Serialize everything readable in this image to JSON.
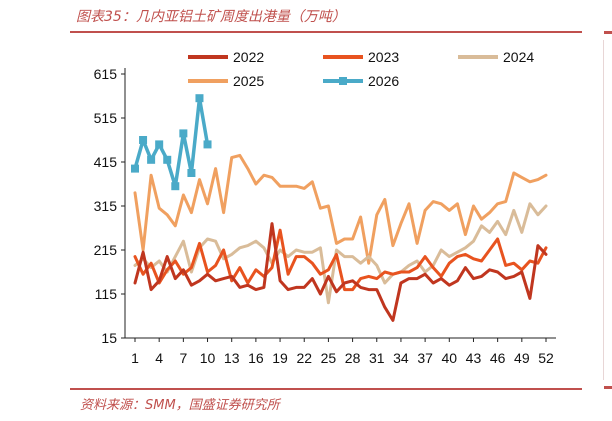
{
  "header": {
    "title": "图表35：几内亚铝土矿周度出港量（万吨）"
  },
  "footer": {
    "source": "资料来源：SMM，国盛证券研究所"
  },
  "chart_data": {
    "type": "line",
    "title": "图表35：几内亚铝土矿周度出港量（万吨）",
    "xlabel": "",
    "ylabel": "",
    "xlim": [
      1,
      52
    ],
    "ylim": [
      15,
      615
    ],
    "yticks": [
      15,
      115,
      215,
      315,
      415,
      515,
      615
    ],
    "xticks": [
      1,
      4,
      7,
      10,
      13,
      16,
      19,
      22,
      25,
      28,
      31,
      34,
      37,
      40,
      43,
      46,
      49,
      52
    ],
    "grid": false,
    "legend": "top-right",
    "series": [
      {
        "name": "2022",
        "color": "#c0361f",
        "marker": "none",
        "x": [
          1,
          2,
          3,
          4,
          5,
          6,
          7,
          8,
          9,
          10,
          11,
          12,
          13,
          14,
          15,
          16,
          17,
          18,
          19,
          20,
          21,
          22,
          23,
          24,
          25,
          26,
          27,
          28,
          29,
          30,
          31,
          32,
          33,
          34,
          35,
          36,
          37,
          38,
          39,
          40,
          41,
          42,
          43,
          44,
          45,
          46,
          47,
          48,
          49,
          50,
          51,
          52
        ],
        "values": [
          140,
          210,
          125,
          145,
          200,
          150,
          170,
          135,
          145,
          160,
          145,
          150,
          155,
          130,
          135,
          125,
          130,
          275,
          145,
          125,
          130,
          130,
          150,
          115,
          155,
          120,
          140,
          145,
          130,
          125,
          125,
          85,
          55,
          140,
          150,
          150,
          160,
          140,
          150,
          135,
          145,
          175,
          150,
          155,
          170,
          165,
          150,
          155,
          165,
          105,
          225,
          205
        ]
      },
      {
        "name": "2023",
        "color": "#e8531f",
        "marker": "none",
        "x": [
          1,
          2,
          3,
          4,
          5,
          6,
          7,
          8,
          9,
          10,
          11,
          12,
          13,
          14,
          15,
          16,
          17,
          18,
          19,
          20,
          21,
          22,
          23,
          24,
          25,
          26,
          27,
          28,
          29,
          30,
          31,
          32,
          33,
          34,
          35,
          36,
          37,
          38,
          39,
          40,
          41,
          42,
          43,
          44,
          45,
          46,
          47,
          48,
          49,
          50,
          51,
          52
        ],
        "values": [
          200,
          160,
          185,
          140,
          170,
          190,
          160,
          175,
          230,
          165,
          180,
          215,
          145,
          175,
          140,
          170,
          155,
          175,
          260,
          160,
          200,
          200,
          185,
          160,
          170,
          205,
          125,
          125,
          150,
          155,
          150,
          165,
          160,
          165,
          165,
          175,
          200,
          175,
          155,
          185,
          200,
          205,
          195,
          190,
          215,
          240,
          180,
          185,
          170,
          190,
          185,
          220
        ]
      },
      {
        "name": "2024",
        "color": "#d9bc99",
        "marker": "none",
        "x": [
          1,
          2,
          3,
          4,
          5,
          6,
          7,
          8,
          9,
          10,
          11,
          12,
          13,
          14,
          15,
          16,
          17,
          18,
          19,
          20,
          21,
          22,
          23,
          24,
          25,
          26,
          27,
          28,
          29,
          30,
          31,
          32,
          33,
          34,
          35,
          36,
          37,
          38,
          39,
          40,
          41,
          42,
          43,
          44,
          45,
          46,
          47,
          48,
          49,
          50,
          51,
          52
        ],
        "values": [
          180,
          195,
          175,
          190,
          165,
          200,
          235,
          165,
          220,
          240,
          235,
          195,
          205,
          220,
          225,
          235,
          220,
          185,
          215,
          200,
          215,
          210,
          210,
          220,
          95,
          215,
          200,
          200,
          185,
          200,
          180,
          140,
          160,
          165,
          180,
          190,
          165,
          180,
          215,
          200,
          210,
          220,
          235,
          270,
          255,
          280,
          250,
          305,
          255,
          320,
          295,
          315
        ]
      },
      {
        "name": "2025",
        "color": "#f0a060",
        "marker": "none",
        "x": [
          1,
          2,
          3,
          4,
          5,
          6,
          7,
          8,
          9,
          10,
          11,
          12,
          13,
          14,
          15,
          16,
          17,
          18,
          19,
          20,
          21,
          22,
          23,
          24,
          25,
          26,
          27,
          28,
          29,
          30,
          31,
          32,
          33,
          34,
          35,
          36,
          37,
          38,
          39,
          40,
          41,
          42,
          43,
          44,
          45,
          46,
          47,
          48,
          49,
          50,
          51,
          52
        ],
        "values": [
          345,
          215,
          385,
          310,
          295,
          270,
          340,
          300,
          375,
          320,
          400,
          300,
          425,
          430,
          400,
          365,
          385,
          380,
          360,
          360,
          360,
          355,
          370,
          310,
          315,
          230,
          240,
          240,
          290,
          185,
          295,
          330,
          225,
          275,
          320,
          230,
          305,
          325,
          320,
          305,
          320,
          250,
          315,
          285,
          300,
          320,
          325,
          390,
          380,
          370,
          375,
          385
        ]
      },
      {
        "name": "2026",
        "color": "#4aaac8",
        "marker": "square",
        "x": [
          1,
          2,
          3,
          4,
          5,
          6,
          7,
          8,
          9,
          10
        ],
        "values": [
          400,
          465,
          420,
          455,
          420,
          360,
          480,
          390,
          560,
          455
        ]
      }
    ]
  }
}
